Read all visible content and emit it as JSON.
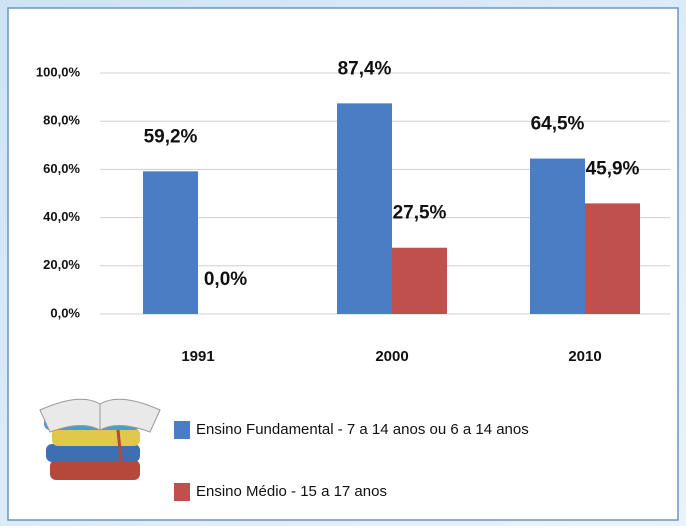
{
  "chart_data": {
    "type": "bar",
    "categories": [
      "1991",
      "2000",
      "2010"
    ],
    "series": [
      {
        "name": "Ensino Fundamental - 7 a 14 anos ou 6 a 14 anos",
        "color": "#4a7dc4",
        "values": [
          59.2,
          87.4,
          64.5
        ],
        "value_labels": [
          "59,2%",
          "87,4%",
          "64,5%"
        ]
      },
      {
        "name": "Ensino Médio - 15 a 17 anos",
        "color": "#c0504d",
        "values": [
          0,
          27.5,
          45.9
        ],
        "value_labels": [
          "0,0%",
          "27,5%",
          "45,9%"
        ]
      }
    ],
    "ylim": [
      0,
      100
    ],
    "yticks": [
      {
        "value": 0,
        "label": "0,0%"
      },
      {
        "value": 20,
        "label": "20,0%"
      },
      {
        "value": 40,
        "label": "40,0%"
      },
      {
        "value": 60,
        "label": "60,0%"
      },
      {
        "value": 80,
        "label": "80,0%"
      },
      {
        "value": 100,
        "label": "100,0%"
      }
    ],
    "grid": true
  }
}
